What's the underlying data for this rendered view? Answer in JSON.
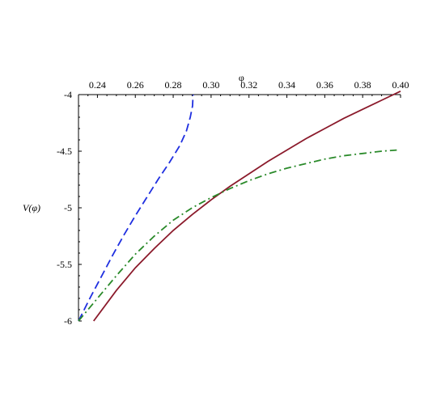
{
  "chart_data": {
    "type": "line",
    "xlabel": "φ",
    "ylabel": "V(φ)",
    "xlim": [
      0.23,
      0.4
    ],
    "ylim": [
      -6,
      -4
    ],
    "x_axis_position": "top",
    "y_axis_position": "left",
    "grid": false,
    "x_ticks": [
      0.24,
      0.26,
      0.28,
      0.3,
      0.32,
      0.34,
      0.36,
      0.38,
      0.4
    ],
    "x_tick_labels": [
      "0.24",
      "0.26",
      "0.28",
      "0.30",
      "0.32",
      "0.34",
      "0.36",
      "0.38",
      "0.40"
    ],
    "y_ticks": [
      -4,
      -4.5,
      -5,
      -5.5,
      -6
    ],
    "y_tick_labels": [
      "-4",
      "-4.5",
      "-5",
      "-5.5",
      "-6"
    ],
    "series": [
      {
        "style": "dashed",
        "color": "#1f2fe0",
        "x": [
          0.23,
          0.236,
          0.242,
          0.248,
          0.254,
          0.26,
          0.266,
          0.272,
          0.278,
          0.2835,
          0.287,
          0.289,
          0.2902,
          0.2905
        ],
        "y": [
          -6.0,
          -5.8,
          -5.61,
          -5.42,
          -5.24,
          -5.07,
          -4.91,
          -4.75,
          -4.6,
          -4.45,
          -4.32,
          -4.2,
          -4.1,
          -4.0
        ]
      },
      {
        "style": "solid",
        "color": "#8b1a2b",
        "x": [
          0.238,
          0.25,
          0.26,
          0.27,
          0.28,
          0.29,
          0.3,
          0.31,
          0.32,
          0.33,
          0.34,
          0.35,
          0.36,
          0.37,
          0.38,
          0.39,
          0.4
        ],
        "y": [
          -6.0,
          -5.73,
          -5.53,
          -5.36,
          -5.2,
          -5.06,
          -4.93,
          -4.81,
          -4.7,
          -4.59,
          -4.49,
          -4.39,
          -4.3,
          -4.21,
          -4.13,
          -4.05,
          -3.97
        ]
      },
      {
        "style": "dashdot",
        "color": "#2a8a2a",
        "x": [
          0.23,
          0.24,
          0.25,
          0.26,
          0.27,
          0.28,
          0.29,
          0.3,
          0.31,
          0.32,
          0.33,
          0.34,
          0.35,
          0.36,
          0.37,
          0.38,
          0.39,
          0.398
        ],
        "y": [
          -6.0,
          -5.8,
          -5.6,
          -5.41,
          -5.25,
          -5.11,
          -5.0,
          -4.91,
          -4.83,
          -4.76,
          -4.7,
          -4.65,
          -4.61,
          -4.57,
          -4.54,
          -4.52,
          -4.5,
          -4.49
        ]
      }
    ]
  }
}
